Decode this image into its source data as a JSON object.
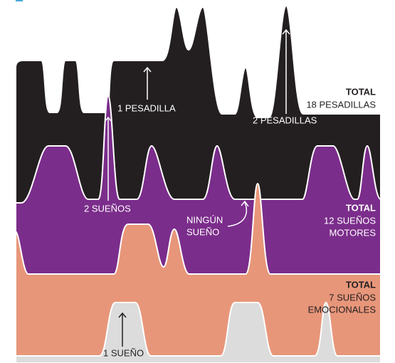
{
  "annotations": [
    {
      "lines": [
        "1 PESADILLA"
      ]
    },
    {
      "lines": [
        "2 PESADILLAS"
      ]
    },
    {
      "lines": [
        "2 SUEÑOS"
      ]
    },
    {
      "lines": [
        "NINGÚN",
        "SUEÑO"
      ]
    },
    {
      "lines": [
        "1 SUEÑO"
      ]
    }
  ],
  "totals": [
    {
      "heading": "TOTAL",
      "lines": [
        "18 PESADILLAS"
      ]
    },
    {
      "heading": "TOTAL",
      "lines": [
        "12 SUEÑOS",
        "MOTORES"
      ]
    },
    {
      "heading": "TOTAL",
      "lines": [
        "7 SUEÑOS",
        "EMOCIONALES"
      ]
    }
  ]
}
